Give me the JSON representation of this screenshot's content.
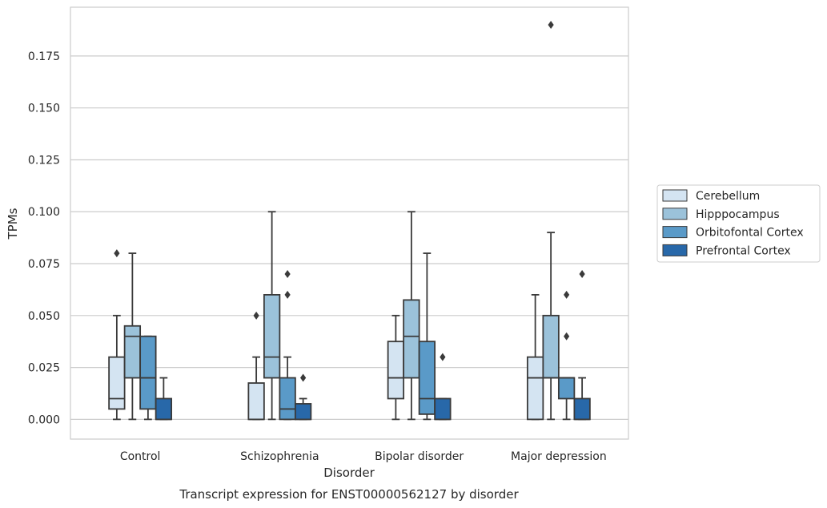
{
  "chart_data": {
    "type": "box",
    "caption": "Transcript expression for ENST00000562127 by disorder",
    "xlabel": "Disorder",
    "ylabel": "TPMs",
    "categories": [
      "Control",
      "Schizophrenia",
      "Bipolar disorder",
      "Major depression"
    ],
    "ylim": [
      -0.0095,
      0.1985
    ],
    "yticks": [
      "0.000",
      "0.025",
      "0.050",
      "0.075",
      "0.100",
      "0.125",
      "0.150",
      "0.175"
    ],
    "grid": "horizontal",
    "legend_position": "right",
    "series": [
      {
        "name": "Cerebellum",
        "color": "#d4e4f2",
        "boxes": [
          {
            "whislo": 0.0,
            "q1": 0.005,
            "med": 0.01,
            "q3": 0.03,
            "whishi": 0.05,
            "fliers": [
              0.08
            ]
          },
          {
            "whislo": 0.0,
            "q1": 0.0,
            "med": 0.0,
            "q3": 0.0175,
            "whishi": 0.03,
            "fliers": [
              0.05
            ]
          },
          {
            "whislo": 0.0,
            "q1": 0.01,
            "med": 0.02,
            "q3": 0.0375,
            "whishi": 0.05,
            "fliers": []
          },
          {
            "whislo": 0.0,
            "q1": 0.0,
            "med": 0.02,
            "q3": 0.03,
            "whishi": 0.06,
            "fliers": []
          }
        ]
      },
      {
        "name": "Hipppocampus",
        "color": "#9bc2da",
        "boxes": [
          {
            "whislo": 0.0,
            "q1": 0.02,
            "med": 0.04,
            "q3": 0.045,
            "whishi": 0.08,
            "fliers": []
          },
          {
            "whislo": 0.0,
            "q1": 0.02,
            "med": 0.03,
            "q3": 0.06,
            "whishi": 0.1,
            "fliers": []
          },
          {
            "whislo": 0.0,
            "q1": 0.02,
            "med": 0.04,
            "q3": 0.0575,
            "whishi": 0.1,
            "fliers": []
          },
          {
            "whislo": 0.0,
            "q1": 0.02,
            "med": 0.02,
            "q3": 0.05,
            "whishi": 0.09,
            "fliers": [
              0.19
            ]
          }
        ]
      },
      {
        "name": "Orbitofontal Cortex",
        "color": "#5a9ac8",
        "boxes": [
          {
            "whislo": 0.0,
            "q1": 0.005,
            "med": 0.02,
            "q3": 0.04,
            "whishi": 0.04,
            "fliers": []
          },
          {
            "whislo": 0.0,
            "q1": 0.0,
            "med": 0.005,
            "q3": 0.02,
            "whishi": 0.03,
            "fliers": [
              0.06,
              0.07
            ]
          },
          {
            "whislo": 0.0,
            "q1": 0.0025,
            "med": 0.01,
            "q3": 0.0375,
            "whishi": 0.08,
            "fliers": []
          },
          {
            "whislo": 0.0,
            "q1": 0.01,
            "med": 0.02,
            "q3": 0.02,
            "whishi": 0.02,
            "fliers": [
              0.04,
              0.06
            ]
          }
        ]
      },
      {
        "name": "Prefrontal Cortex",
        "color": "#2868a9",
        "boxes": [
          {
            "whislo": 0.0,
            "q1": 0.0,
            "med": 0.0,
            "q3": 0.01,
            "whishi": 0.02,
            "fliers": []
          },
          {
            "whislo": 0.0,
            "q1": 0.0,
            "med": 0.0,
            "q3": 0.0075,
            "whishi": 0.01,
            "fliers": [
              0.02
            ]
          },
          {
            "whislo": 0.0,
            "q1": 0.0,
            "med": 0.0,
            "q3": 0.01,
            "whishi": 0.01,
            "fliers": [
              0.03
            ]
          },
          {
            "whislo": 0.0,
            "q1": 0.0,
            "med": 0.0,
            "q3": 0.01,
            "whishi": 0.02,
            "fliers": [
              0.07
            ]
          }
        ]
      }
    ]
  }
}
